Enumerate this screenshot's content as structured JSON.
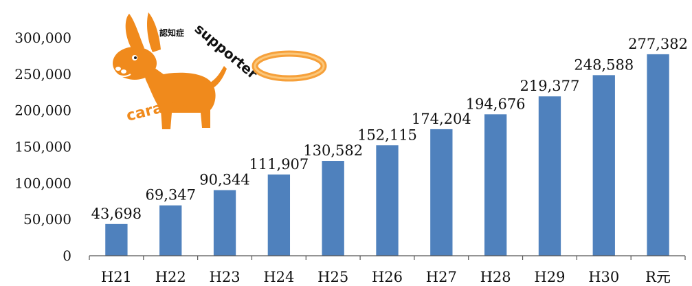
{
  "logo": {
    "text_kanji": "認知症",
    "text_supporter": "supporter",
    "text_caravan": "caravan",
    "brand_color": "#f08a1c"
  },
  "chart_data": {
    "type": "bar",
    "categories": [
      "H21",
      "H22",
      "H23",
      "H24",
      "H25",
      "H26",
      "H27",
      "H28",
      "H29",
      "H30",
      "R元"
    ],
    "values": [
      43698,
      69347,
      90344,
      111907,
      130582,
      152115,
      174204,
      194676,
      219377,
      248588,
      277382
    ],
    "value_labels": [
      "43,698",
      "69,347",
      "90,344",
      "111,907",
      "130,582",
      "152,115",
      "174,204",
      "194,676",
      "219,377",
      "248,588",
      "277,382"
    ],
    "yticks": [
      0,
      50000,
      100000,
      150000,
      200000,
      250000,
      300000
    ],
    "ytick_labels": [
      "0",
      "50,000",
      "100,000",
      "150,000",
      "200,000",
      "250,000",
      "300,000"
    ],
    "ylim": [
      0,
      300000
    ],
    "grid": false,
    "bar_color": "#4f81bd",
    "title": "",
    "xlabel": "",
    "ylabel": ""
  }
}
